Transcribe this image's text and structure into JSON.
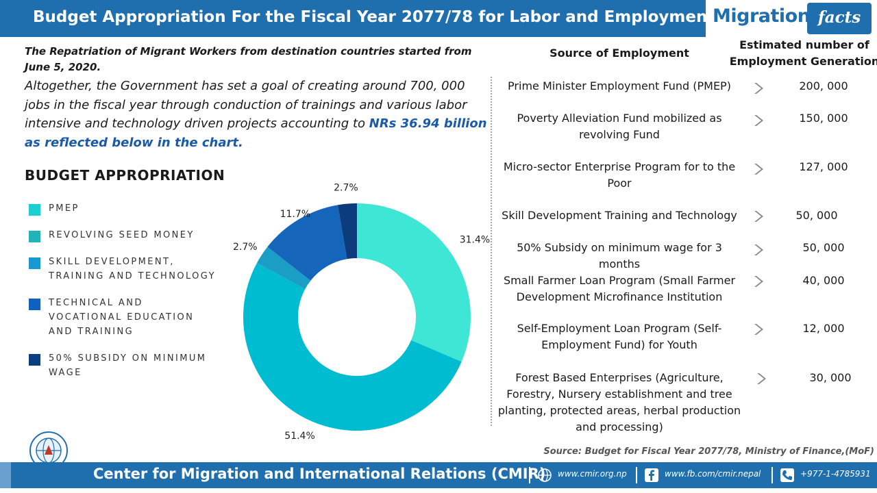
{
  "header": {
    "title": "Budget Appropriation For the Fiscal Year 2077/78 for  Labor and Employment"
  },
  "logo": {
    "part1": "Migration",
    "part2": "facts"
  },
  "intro": {
    "bold_line": "The Repatriation of Migrant Workers from destination countries started from June 5, 2020.",
    "body": "Altogether, the Government has set a goal of creating around 700, 000 jobs in the fiscal year through conduction of trainings and various labor intensive and technology driven projects accounting to ",
    "highlight": "NRs 36.94 billion as reflected below in the chart."
  },
  "chart_data": {
    "type": "pie",
    "title": "BUDGET APPROPRIATION",
    "donut": true,
    "categories": [
      "PMEP",
      "REVOLVING SEED MONEY",
      "SKILL DEVELOPMENT, TRAINING AND TECHNOLOGY",
      "TECHNICAL AND VOCATIONAL EDUCATION AND TRAINING",
      "50% SUBSIDY ON MINIMUM WAGE"
    ],
    "values": [
      31.4,
      51.4,
      2.7,
      11.7,
      2.7
    ],
    "labels": [
      "31.4%",
      "51.4%",
      "2.7%",
      "11.7%",
      "2.7%"
    ],
    "slice_colors": [
      "#3ee6d6",
      "#00bcd0",
      "#1a9ec6",
      "#1565ba",
      "#0c3c7c"
    ],
    "legend_colors": [
      "#1ccfcf",
      "#20b4b8",
      "#1899cf",
      "#1060bd",
      "#0b3d7f"
    ],
    "legend_position": "left"
  },
  "employment_table": {
    "headers": {
      "source": "Source of Employment",
      "count": "Estimated number of Employment Generation"
    },
    "rows": [
      {
        "source": "Prime Minister Employment Fund (PMEP)",
        "count": "200, 000"
      },
      {
        "source": "Poverty Alleviation Fund mobilized as revolving Fund",
        "count": "150, 000"
      },
      {
        "source": "Micro-sector Enterprise Program for to the Poor",
        "count": "127, 000"
      },
      {
        "source": "Skill Development Training and Technology",
        "count": "50, 000"
      },
      {
        "source": "50% Subsidy on minimum wage for 3 months",
        "count": "50, 000"
      },
      {
        "source": "Small Farmer Loan Program (Small Farmer Development Microfinance Institution",
        "count": "40, 000"
      },
      {
        "source": "Self-Employment Loan Program (Self-Employment Fund) for Youth",
        "count": "12, 000"
      },
      {
        "source": "Forest Based Enterprises (Agriculture, Forestry, Nursery establishment and tree planting, protected areas, herbal production and processing)",
        "count": "30, 000"
      }
    ]
  },
  "source_note": "Source: Budget for Fiscal Year 2077/78, Ministry of Finance,(MoF)",
  "footer": {
    "title": "Center for Migration and International Relations (CMIR)",
    "website": "www.cmir.org.np",
    "facebook": "www.fb.com/cmir.nepal",
    "phone": "+977-1-4785931"
  },
  "icons": {
    "arrow": "chevron-right-icon",
    "web": "globe-icon",
    "fb": "facebook-icon",
    "phone": "phone-icon",
    "org_logo": "cmir-logo-icon"
  },
  "colors": {
    "brand_blue": "#1f6fae",
    "highlight_blue": "#1a5aa8"
  }
}
